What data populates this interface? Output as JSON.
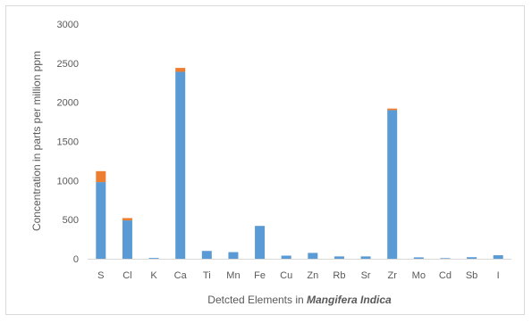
{
  "chart_data": {
    "type": "bar",
    "stacked": true,
    "categories": [
      "S",
      "Cl",
      "K",
      "Ca",
      "Ti",
      "Mn",
      "Fe",
      "Cu",
      "Zn",
      "Rb",
      "Sr",
      "Zr",
      "Mo",
      "Cd",
      "Sb",
      "I"
    ],
    "series": [
      {
        "color": "#5b9bd5",
        "values": [
          980,
          490,
          10,
          2390,
          100,
          85,
          420,
          40,
          75,
          30,
          30,
          1900,
          18,
          8,
          20,
          45
        ]
      },
      {
        "color": "#ed7d31",
        "values": [
          140,
          30,
          0,
          50,
          0,
          0,
          0,
          0,
          0,
          0,
          0,
          20,
          0,
          0,
          0,
          0
        ]
      }
    ],
    "ylim": [
      0,
      3000
    ],
    "yticks": [
      0,
      500,
      1000,
      1500,
      2000,
      2500,
      3000
    ],
    "ylabel": "Concentration in parts per million ppm",
    "xlabel_prefix": "Detcted Elements in ",
    "xlabel_emphasis": "Mangifera Indica",
    "grid": false,
    "legend": "none"
  }
}
